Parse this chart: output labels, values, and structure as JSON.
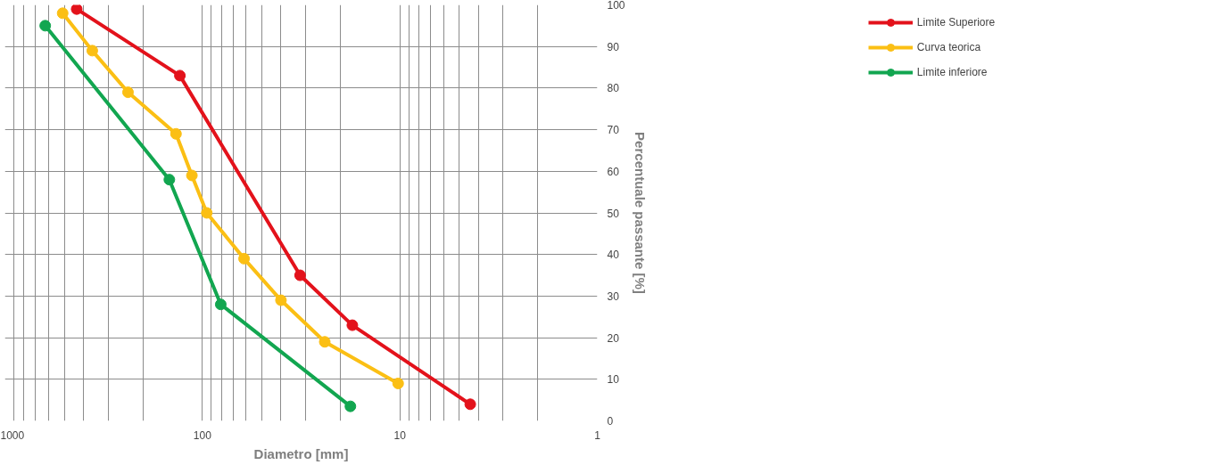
{
  "chart_data": {
    "type": "line",
    "xlabel": "Diametro [mm]",
    "ylabel": "Percentuale passante [%]",
    "log": "x",
    "xlim": [
      1000,
      1
    ],
    "xticks": [
      1000,
      100,
      10,
      1
    ],
    "ylim": [
      0,
      100
    ],
    "yticks": [
      0,
      10,
      20,
      30,
      40,
      50,
      60,
      70,
      80,
      90,
      100
    ],
    "grid": true,
    "legend": "top right",
    "marker": "circle",
    "line_style": "solid",
    "series": [
      {
        "name": "Limite Superiore",
        "color": "#e3121b",
        "x": [
          433,
          130,
          32,
          17.4,
          4.4
        ],
        "values": [
          99,
          83,
          35,
          23,
          4
        ]
      },
      {
        "name": "Curva teorica",
        "color": "#fbbf14",
        "x": [
          510,
          361,
          238,
          136,
          113,
          95,
          61.5,
          40,
          24,
          10.2
        ],
        "values": [
          98,
          89,
          79,
          69,
          59,
          50,
          39,
          29,
          19,
          9
        ]
      },
      {
        "name": "Limite inferiore",
        "color": "#12a650",
        "x": [
          625,
          147,
          80.7,
          17.8
        ],
        "values": [
          95,
          58,
          28,
          3.5
        ]
      }
    ]
  }
}
